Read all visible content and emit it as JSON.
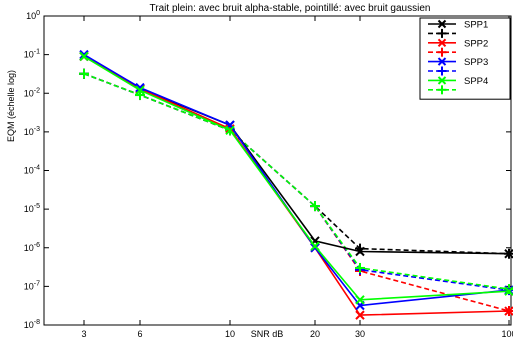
{
  "chart_data": {
    "type": "line",
    "title": "Trait plein: avec bruit alpha-stable, pointillé: avec bruit gaussien",
    "xlabel": "SNR dB",
    "ylabel": "EQM (échelle log)",
    "x_scale": "categorical",
    "y_scale": "log",
    "ylim": [
      1e-08,
      1
    ],
    "categories": [
      "3",
      "6",
      "10",
      "20",
      "30",
      "100"
    ],
    "y_ticks": [
      {
        "value": 1.0,
        "base": "10",
        "exp": "0"
      },
      {
        "value": 0.1,
        "base": "10",
        "exp": "-1"
      },
      {
        "value": 0.01,
        "base": "10",
        "exp": "-2"
      },
      {
        "value": 0.001,
        "base": "10",
        "exp": "-3"
      },
      {
        "value": 0.0001,
        "base": "10",
        "exp": "-4"
      },
      {
        "value": 1e-05,
        "base": "10",
        "exp": "-5"
      },
      {
        "value": 1e-06,
        "base": "10",
        "exp": "-6"
      },
      {
        "value": 1e-07,
        "base": "10",
        "exp": "-7"
      },
      {
        "value": 1e-08,
        "base": "10",
        "exp": "-8"
      }
    ],
    "grid": false,
    "legend_position": "top-right",
    "legend": [
      {
        "label": "SPP1",
        "color": "#000000",
        "style": "solid",
        "marker": "x"
      },
      {
        "label": "",
        "color": "#000000",
        "style": "dashed",
        "marker": "+"
      },
      {
        "label": "SPP2",
        "color": "#ff0000",
        "style": "solid",
        "marker": "x"
      },
      {
        "label": "",
        "color": "#ff0000",
        "style": "dashed",
        "marker": "+"
      },
      {
        "label": "SPP3",
        "color": "#0000ff",
        "style": "solid",
        "marker": "x"
      },
      {
        "label": "",
        "color": "#0000ff",
        "style": "dashed",
        "marker": "+"
      },
      {
        "label": "SPP4",
        "color": "#00ff00",
        "style": "solid",
        "marker": "x"
      },
      {
        "label": "",
        "color": "#00ff00",
        "style": "dashed",
        "marker": "+"
      }
    ],
    "series": [
      {
        "name": "SPP1",
        "noise": "alpha-stable",
        "color": "#000000",
        "style": "solid",
        "marker": "x",
        "values": [
          0.09,
          0.013,
          0.0015,
          1.5e-06,
          8e-07,
          7e-07
        ]
      },
      {
        "name": "SPP1",
        "noise": "gaussien",
        "color": "#000000",
        "style": "dashed",
        "marker": "+",
        "values": [
          0.032,
          0.009,
          0.0011,
          1.2e-05,
          9.5e-07,
          7e-07
        ]
      },
      {
        "name": "SPP2",
        "noise": "alpha-stable",
        "color": "#ff0000",
        "style": "solid",
        "marker": "x",
        "values": [
          0.09,
          0.013,
          0.0012,
          1e-06,
          1.8e-08,
          2.3e-08
        ]
      },
      {
        "name": "SPP2",
        "noise": "gaussien",
        "color": "#ff0000",
        "style": "dashed",
        "marker": "+",
        "values": [
          0.032,
          0.009,
          0.0011,
          1.2e-05,
          2.5e-07,
          2.3e-08
        ]
      },
      {
        "name": "SPP3",
        "noise": "alpha-stable",
        "color": "#0000ff",
        "style": "solid",
        "marker": "x",
        "values": [
          0.1,
          0.014,
          0.0015,
          1e-06,
          3.2e-08,
          8e-08
        ]
      },
      {
        "name": "SPP3",
        "noise": "gaussien",
        "color": "#0000ff",
        "style": "dashed",
        "marker": "+",
        "values": [
          0.032,
          0.009,
          0.0011,
          1.2e-05,
          2.7e-07,
          8e-08
        ]
      },
      {
        "name": "SPP4",
        "noise": "alpha-stable",
        "color": "#00ff00",
        "style": "solid",
        "marker": "x",
        "values": [
          0.09,
          0.012,
          0.0011,
          1.1e-06,
          4.5e-08,
          7.5e-08
        ]
      },
      {
        "name": "SPP4",
        "noise": "gaussien",
        "color": "#00ff00",
        "style": "dashed",
        "marker": "+",
        "values": [
          0.032,
          0.009,
          0.0011,
          1.2e-05,
          3e-07,
          8.5e-08
        ]
      }
    ]
  }
}
